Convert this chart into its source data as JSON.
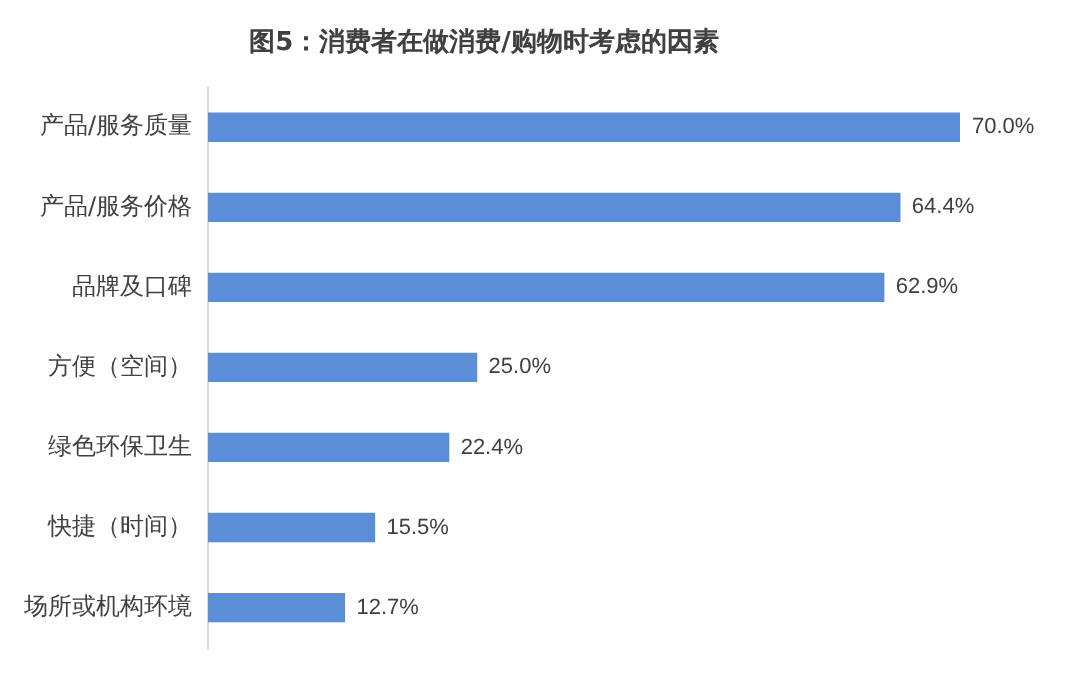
{
  "chart_data": {
    "type": "bar",
    "orientation": "horizontal",
    "title": "图5：消费者在做消费/购物时考虑的因素",
    "categories": [
      "产品/服务质量",
      "产品/服务价格",
      "品牌及口碑",
      "方便（空间）",
      "绿色环保卫生",
      "快捷（时间）",
      "场所或机构环境"
    ],
    "values": [
      70.0,
      64.4,
      62.9,
      25.0,
      22.4,
      15.5,
      12.7
    ],
    "value_labels": [
      "70.0%",
      "64.4%",
      "62.9%",
      "25.0%",
      "22.4%",
      "15.5%",
      "12.7%"
    ],
    "color": "#5b8ed6",
    "legend": false
  }
}
